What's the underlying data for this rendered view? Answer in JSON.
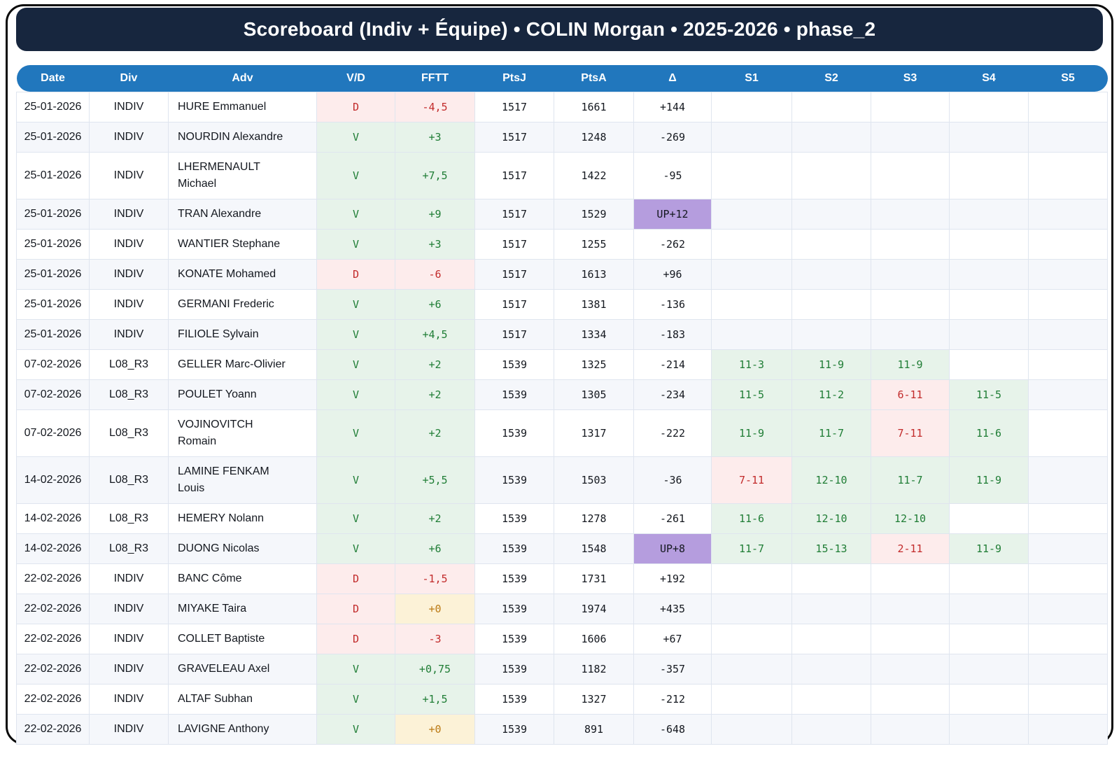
{
  "title": "Scoreboard (Indiv + Équipe) • COLIN Morgan • 2025-2026 • phase_2",
  "colors": {
    "titlebar_bg": "#17263e",
    "header_bg": "#2177bd",
    "win_text": "#1f7d35",
    "win_bg": "#e7f3ea",
    "loss_text": "#c22b2b",
    "loss_bg": "#fdecec",
    "zero_text": "#bb7a14",
    "zero_bg": "#fcf2d7",
    "up_badge_bg": "#b59dde"
  },
  "table": {
    "columns": [
      "Date",
      "Div",
      "Adv",
      "V/D",
      "FFTT",
      "PtsJ",
      "PtsA",
      "Δ",
      "S1",
      "S2",
      "S3",
      "S4",
      "S5"
    ],
    "rows": [
      {
        "date": "25-01-2026",
        "div": "INDIV",
        "adv": "HURE Emmanuel",
        "vd": "D",
        "fftt": "-4,5",
        "ptsj": "1517",
        "ptsa": "1661",
        "delta": "+144",
        "sets": [
          "",
          "",
          "",
          "",
          ""
        ]
      },
      {
        "date": "25-01-2026",
        "div": "INDIV",
        "adv": "NOURDIN Alexandre",
        "vd": "V",
        "fftt": "+3",
        "ptsj": "1517",
        "ptsa": "1248",
        "delta": "-269",
        "sets": [
          "",
          "",
          "",
          "",
          ""
        ]
      },
      {
        "date": "25-01-2026",
        "div": "INDIV",
        "adv": "LHERMENAULT\nMichael",
        "vd": "V",
        "fftt": "+7,5",
        "ptsj": "1517",
        "ptsa": "1422",
        "delta": "-95",
        "sets": [
          "",
          "",
          "",
          "",
          ""
        ]
      },
      {
        "date": "25-01-2026",
        "div": "INDIV",
        "adv": "TRAN Alexandre",
        "vd": "V",
        "fftt": "+9",
        "ptsj": "1517",
        "ptsa": "1529",
        "delta": "UP+12",
        "sets": [
          "",
          "",
          "",
          "",
          ""
        ]
      },
      {
        "date": "25-01-2026",
        "div": "INDIV",
        "adv": "WANTIER Stephane",
        "vd": "V",
        "fftt": "+3",
        "ptsj": "1517",
        "ptsa": "1255",
        "delta": "-262",
        "sets": [
          "",
          "",
          "",
          "",
          ""
        ]
      },
      {
        "date": "25-01-2026",
        "div": "INDIV",
        "adv": "KONATE Mohamed",
        "vd": "D",
        "fftt": "-6",
        "ptsj": "1517",
        "ptsa": "1613",
        "delta": "+96",
        "sets": [
          "",
          "",
          "",
          "",
          ""
        ]
      },
      {
        "date": "25-01-2026",
        "div": "INDIV",
        "adv": "GERMANI Frederic",
        "vd": "V",
        "fftt": "+6",
        "ptsj": "1517",
        "ptsa": "1381",
        "delta": "-136",
        "sets": [
          "",
          "",
          "",
          "",
          ""
        ]
      },
      {
        "date": "25-01-2026",
        "div": "INDIV",
        "adv": "FILIOLE Sylvain",
        "vd": "V",
        "fftt": "+4,5",
        "ptsj": "1517",
        "ptsa": "1334",
        "delta": "-183",
        "sets": [
          "",
          "",
          "",
          "",
          ""
        ]
      },
      {
        "date": "07-02-2026",
        "div": "L08_R3",
        "adv": "GELLER Marc-Olivier",
        "vd": "V",
        "fftt": "+2",
        "ptsj": "1539",
        "ptsa": "1325",
        "delta": "-214",
        "sets": [
          "11-3",
          "11-9",
          "11-9",
          "",
          ""
        ]
      },
      {
        "date": "07-02-2026",
        "div": "L08_R3",
        "adv": "POULET Yoann",
        "vd": "V",
        "fftt": "+2",
        "ptsj": "1539",
        "ptsa": "1305",
        "delta": "-234",
        "sets": [
          "11-5",
          "11-2",
          "6-11",
          "11-5",
          ""
        ]
      },
      {
        "date": "07-02-2026",
        "div": "L08_R3",
        "adv": "VOJINOVITCH\nRomain",
        "vd": "V",
        "fftt": "+2",
        "ptsj": "1539",
        "ptsa": "1317",
        "delta": "-222",
        "sets": [
          "11-9",
          "11-7",
          "7-11",
          "11-6",
          ""
        ]
      },
      {
        "date": "14-02-2026",
        "div": "L08_R3",
        "adv": "LAMINE FENKAM\nLouis",
        "vd": "V",
        "fftt": "+5,5",
        "ptsj": "1539",
        "ptsa": "1503",
        "delta": "-36",
        "sets": [
          "7-11",
          "12-10",
          "11-7",
          "11-9",
          ""
        ]
      },
      {
        "date": "14-02-2026",
        "div": "L08_R3",
        "adv": "HEMERY Nolann",
        "vd": "V",
        "fftt": "+2",
        "ptsj": "1539",
        "ptsa": "1278",
        "delta": "-261",
        "sets": [
          "11-6",
          "12-10",
          "12-10",
          "",
          ""
        ]
      },
      {
        "date": "14-02-2026",
        "div": "L08_R3",
        "adv": "DUONG Nicolas",
        "vd": "V",
        "fftt": "+6",
        "ptsj": "1539",
        "ptsa": "1548",
        "delta": "UP+8",
        "sets": [
          "11-7",
          "15-13",
          "2-11",
          "11-9",
          ""
        ]
      },
      {
        "date": "22-02-2026",
        "div": "INDIV",
        "adv": "BANC Côme",
        "vd": "D",
        "fftt": "-1,5",
        "ptsj": "1539",
        "ptsa": "1731",
        "delta": "+192",
        "sets": [
          "",
          "",
          "",
          "",
          ""
        ]
      },
      {
        "date": "22-02-2026",
        "div": "INDIV",
        "adv": "MIYAKE Taira",
        "vd": "D",
        "fftt": "+0",
        "ptsj": "1539",
        "ptsa": "1974",
        "delta": "+435",
        "sets": [
          "",
          "",
          "",
          "",
          ""
        ]
      },
      {
        "date": "22-02-2026",
        "div": "INDIV",
        "adv": "COLLET Baptiste",
        "vd": "D",
        "fftt": "-3",
        "ptsj": "1539",
        "ptsa": "1606",
        "delta": "+67",
        "sets": [
          "",
          "",
          "",
          "",
          ""
        ]
      },
      {
        "date": "22-02-2026",
        "div": "INDIV",
        "adv": "GRAVELEAU Axel",
        "vd": "V",
        "fftt": "+0,75",
        "ptsj": "1539",
        "ptsa": "1182",
        "delta": "-357",
        "sets": [
          "",
          "",
          "",
          "",
          ""
        ]
      },
      {
        "date": "22-02-2026",
        "div": "INDIV",
        "adv": "ALTAF Subhan",
        "vd": "V",
        "fftt": "+1,5",
        "ptsj": "1539",
        "ptsa": "1327",
        "delta": "-212",
        "sets": [
          "",
          "",
          "",
          "",
          ""
        ]
      },
      {
        "date": "22-02-2026",
        "div": "INDIV",
        "adv": "LAVIGNE Anthony",
        "vd": "V",
        "fftt": "+0",
        "ptsj": "1539",
        "ptsa": "891",
        "delta": "-648",
        "sets": [
          "",
          "",
          "",
          "",
          ""
        ]
      }
    ]
  }
}
